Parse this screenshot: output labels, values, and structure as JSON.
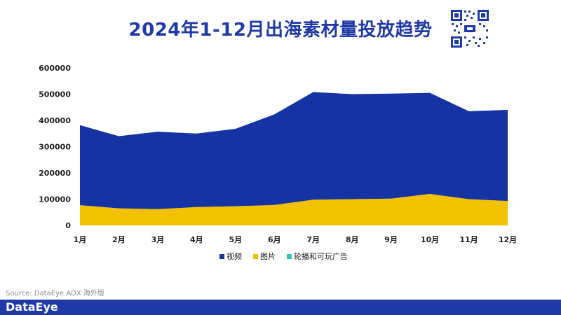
{
  "header": {
    "title": "2024年1-12月出海素材量投放趋势"
  },
  "chart_data": {
    "type": "area",
    "stacked": true,
    "categories": [
      "1月",
      "2月",
      "3月",
      "4月",
      "5月",
      "6月",
      "7月",
      "8月",
      "9月",
      "10月",
      "11月",
      "12月"
    ],
    "series": [
      {
        "name": "视频",
        "color": "#1533a3",
        "values": [
          305000,
          275000,
          295000,
          280000,
          295000,
          345000,
          410000,
          400000,
          400000,
          385000,
          335000,
          347000
        ]
      },
      {
        "name": "图片",
        "color": "#f2c100",
        "values": [
          77000,
          65000,
          62000,
          70000,
          73000,
          78000,
          98000,
          100000,
          102000,
          120000,
          100000,
          93000
        ]
      },
      {
        "name": "轮播和可玩广告",
        "color": "#2ec4b6",
        "values": [
          0,
          0,
          0,
          0,
          0,
          0,
          0,
          0,
          0,
          0,
          0,
          0
        ]
      }
    ],
    "yticks": [
      "0",
      "100000",
      "200000",
      "300000",
      "400000",
      "500000",
      "600000"
    ],
    "ylim": [
      0,
      600000
    ],
    "legend_position": "bottom",
    "grid": false
  },
  "footer": {
    "source": "Source: DataEye ADX 海外版",
    "brand": "DataEye"
  }
}
